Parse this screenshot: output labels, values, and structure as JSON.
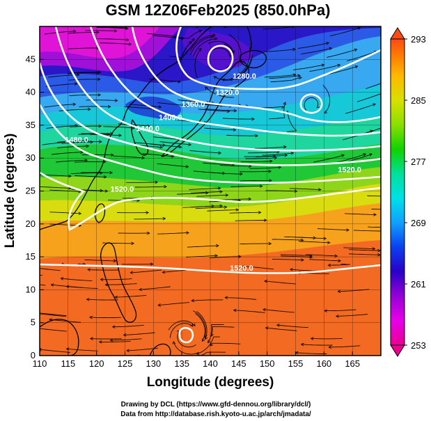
{
  "title": "GSM 12Z06Feb2025 (850.0hPa)",
  "xlabel": "Longitude (degrees)",
  "ylabel": "Latitude  (degrees)",
  "credits": [
    "Drawing by DCL (https://www.gfd-dennou.org/library/dcl/)",
    "Data from http://database.rish.kyoto-u.ac.jp/arch/jmadata/"
  ],
  "chart_data": {
    "type": "heatmap",
    "title": "GSM 12Z06Feb2025 (850.0hPa)",
    "xlabel": "Longitude (degrees)",
    "ylabel": "Latitude  (degrees)",
    "xlim": [
      110,
      170
    ],
    "ylim": [
      0,
      50
    ],
    "x_ticks": [
      "110",
      "115",
      "120",
      "125",
      "130",
      "135",
      "140",
      "145",
      "150",
      "155",
      "160",
      "165"
    ],
    "y_ticks": [
      "0",
      "5",
      "10",
      "15",
      "20",
      "25",
      "30",
      "35",
      "40",
      "45"
    ],
    "colorbar": {
      "min": 253,
      "max": 293,
      "labels": [
        "293",
        "285",
        "277",
        "269",
        "261",
        "253"
      ],
      "colors": [
        "#e8008f",
        "#e800e8",
        "#9600d6",
        "#2a00c8",
        "#0a40ee",
        "#10a0ff",
        "#00e0e8",
        "#00e09a",
        "#10d200",
        "#8ae000",
        "#d8e000",
        "#ffb800",
        "#ff8200",
        "#ff4a14"
      ]
    },
    "contours": {
      "levels_labeled": [
        "1280.0",
        "1320.0",
        "1360.0",
        "1400.0",
        "1440.0",
        "1480.0",
        "1520.0"
      ],
      "labels": [
        {
          "text": "1280.0",
          "lon": 146,
          "lat": 42.5
        },
        {
          "text": "1320.0",
          "lon": 143,
          "lat": 40.0
        },
        {
          "text": "1360.0",
          "lon": 137,
          "lat": 38.2
        },
        {
          "text": "1400.0",
          "lon": 133,
          "lat": 36.2
        },
        {
          "text": "1440.0",
          "lon": 129,
          "lat": 34.5
        },
        {
          "text": "1480.0",
          "lon": 116.5,
          "lat": 32.8
        },
        {
          "text": "1520.0",
          "lon": 164.5,
          "lat": 28.3
        },
        {
          "text": "1520.0",
          "lon": 124.5,
          "lat": 25.3
        },
        {
          "text": "1520.0",
          "lon": 145.5,
          "lat": 13.3
        }
      ]
    }
  }
}
